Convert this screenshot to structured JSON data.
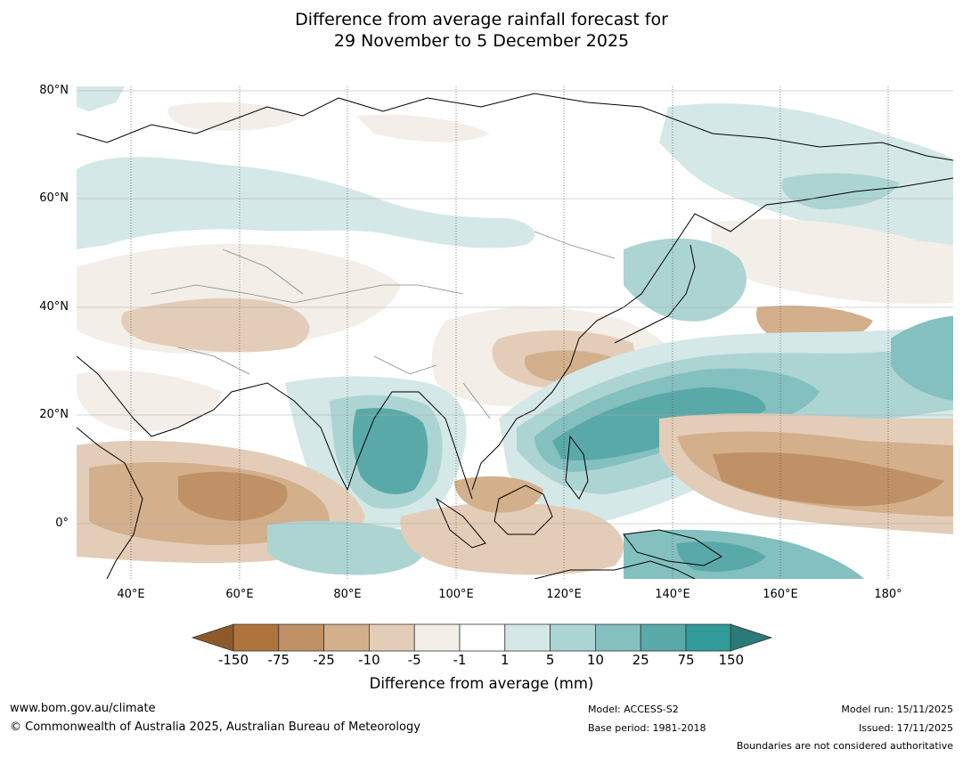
{
  "title_line1": "Difference from average rainfall forecast for",
  "title_line2": "29 November to 5 December 2025",
  "lat_labels": [
    "80°N",
    "60°N",
    "40°N",
    "20°N",
    "0°"
  ],
  "lon_labels": [
    "40°E",
    "60°E",
    "80°E",
    "100°E",
    "120°E",
    "140°E",
    "160°E",
    "180°"
  ],
  "colorbar": {
    "labels": [
      "-150",
      "-75",
      "-25",
      "-10",
      "-5",
      "-1",
      "1",
      "5",
      "10",
      "25",
      "75",
      "150"
    ],
    "colors": [
      "#ae743b",
      "#c09166",
      "#d3af8c",
      "#e4cdb8",
      "#f3eee8",
      "#ffffff",
      "#d4e8e7",
      "#acd4d3",
      "#84c0bf",
      "#5aa9a9",
      "#339b99"
    ],
    "low_extend_color": "#8f5a2a",
    "high_extend_color": "#2b7978",
    "title": "Difference from average (mm)"
  },
  "footer": {
    "website": "www.bom.gov.au/climate",
    "copyright": "© Commonwealth of Australia 2025, Australian Bureau of Meteorology",
    "model": "Model: ACCESS-S2",
    "base_period": "Base period: 1981-2018",
    "model_run": "Model run: 15/11/2025",
    "issued": "Issued: 17/11/2025",
    "disclaimer": "Boundaries are not considered authoritative"
  }
}
